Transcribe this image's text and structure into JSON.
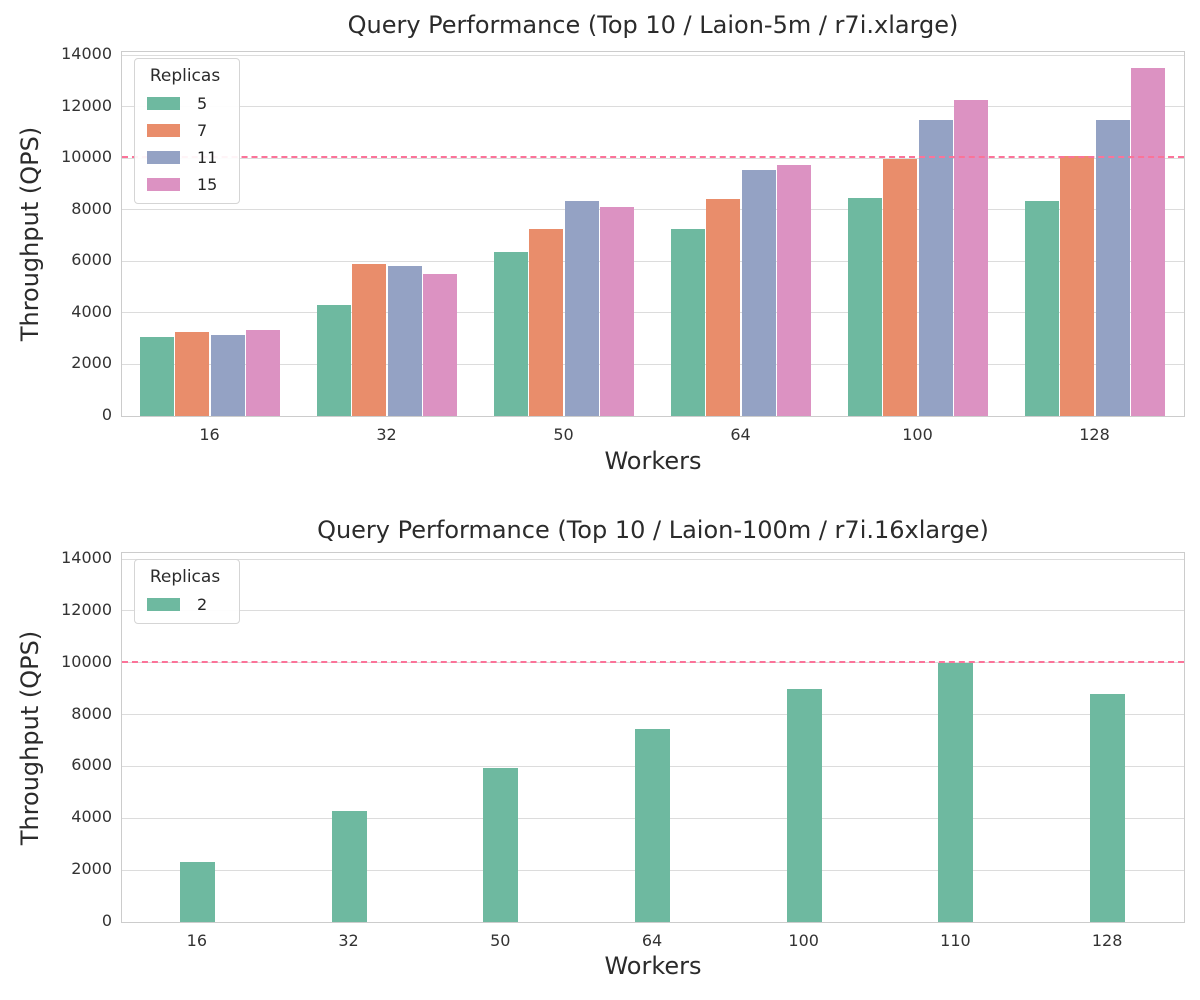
{
  "figure": {
    "background": "#ffffff"
  },
  "style": {
    "grid_color": "#dcdcdc",
    "spine_color": "#cccccc",
    "text_color": "#262626",
    "tick_color": "#333333",
    "threshold_color": "#fb7399"
  },
  "chart_data": [
    {
      "type": "bar",
      "title": "Query Performance (Top 10 / Laion-5m / r7i.xlarge)",
      "xlabel": "Workers",
      "ylabel": "Throughput (QPS)",
      "categories": [
        "16",
        "32",
        "50",
        "64",
        "100",
        "128"
      ],
      "series": [
        {
          "name": "5",
          "color": "#6eb9a0",
          "values": [
            3050,
            4300,
            6350,
            7250,
            8450,
            8350
          ]
        },
        {
          "name": "7",
          "color": "#e98d6b",
          "values": [
            3250,
            5900,
            7250,
            8400,
            9950,
            10100
          ]
        },
        {
          "name": "11",
          "color": "#94a2c4",
          "values": [
            3150,
            5800,
            8350,
            9550,
            11500,
            11500
          ]
        },
        {
          "name": "15",
          "color": "#dc92c2",
          "values": [
            3350,
            5500,
            8100,
            9750,
            12250,
            13500
          ]
        }
      ],
      "legend_title": "Replicas",
      "legend_position": "upper-left",
      "ylim": [
        0,
        14000
      ],
      "yticks": [
        0,
        2000,
        4000,
        6000,
        8000,
        10000,
        12000,
        14000
      ],
      "grid": true,
      "threshold_line": {
        "value": 10000,
        "style": "dashed",
        "color": "#fb7399"
      }
    },
    {
      "type": "bar",
      "title": "Query Performance (Top 10 / Laion-100m / r7i.16xlarge)",
      "xlabel": "Workers",
      "ylabel": "Throughput (QPS)",
      "categories": [
        "16",
        "32",
        "50",
        "64",
        "100",
        "110",
        "128"
      ],
      "series": [
        {
          "name": "2",
          "color": "#6eb9a0",
          "values": [
            2300,
            4300,
            5950,
            7450,
            9000,
            10000,
            8800
          ]
        }
      ],
      "legend_title": "Replicas",
      "legend_position": "upper-left",
      "ylim": [
        0,
        14000
      ],
      "yticks": [
        0,
        2000,
        4000,
        6000,
        8000,
        10000,
        12000,
        14000
      ],
      "grid": true,
      "threshold_line": {
        "value": 10000,
        "style": "dashed",
        "color": "#fb7399"
      }
    }
  ]
}
